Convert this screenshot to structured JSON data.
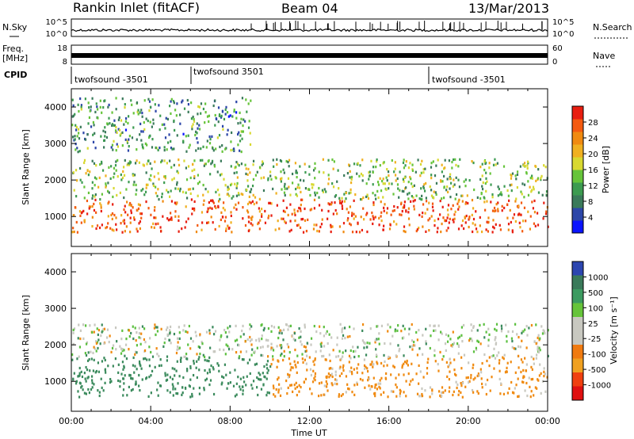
{
  "header": {
    "station": "Rankin Inlet (fitACF)",
    "beam": "Beam 04",
    "date": "13/Mar/2013"
  },
  "strip_labels": {
    "noise_sky": "N.Sky",
    "noise_search": "N.Search",
    "noise_ticks": [
      "10^5",
      "10^0"
    ],
    "freq_label_top": "Freq.",
    "freq_label_unit": "[MHz]",
    "freq_ticks": [
      "18",
      "8"
    ],
    "nave_label": "Nave",
    "nave_ticks": [
      "60",
      "0"
    ],
    "cpid_label": "CPID",
    "cpid_segments": [
      {
        "name": "twofsound -3501",
        "start_hour": 0.0
      },
      {
        "name": "twofsound 3501",
        "start_hour": 6.0
      },
      {
        "name": "twofsound -3501",
        "start_hour": 18.0
      }
    ]
  },
  "x_axis": {
    "label": "Time UT",
    "range_hours": [
      0,
      24
    ],
    "tick_labels": [
      "00:00",
      "04:00",
      "08:00",
      "12:00",
      "16:00",
      "20:00",
      "00:00"
    ]
  },
  "y_axis": {
    "label": "Slant Range [km]",
    "range_km": [
      180,
      4500
    ],
    "tick_labels": [
      "1000",
      "2000",
      "3000",
      "4000"
    ]
  },
  "power_scale": {
    "label": "Power [dB]",
    "range": [
      0,
      32
    ],
    "tick_labels": [
      "4",
      "8",
      "12",
      "16",
      "20",
      "24",
      "28"
    ],
    "colors": [
      "#0a14ff",
      "#2c46a8",
      "#3a7a5a",
      "#3c9b50",
      "#66c43a",
      "#d8d830",
      "#f0b020",
      "#f08a10",
      "#f45a10",
      "#e81e10"
    ]
  },
  "velocity_scale": {
    "label": "Velocity [m s⁻¹]",
    "tick_labels": [
      "1000",
      "500",
      "100",
      "25",
      "-25",
      "-100",
      "-500",
      "-1000"
    ],
    "colors": [
      "#2c46b0",
      "#3a7a5a",
      "#3c9b60",
      "#66c43a",
      "#c8c8c0",
      "#c8c8c0",
      "#f07a10",
      "#f0a020",
      "#f04010",
      "#e01010"
    ]
  },
  "chart_data": {
    "type": "heatmap",
    "title": "Rankin Inlet (fitACF)",
    "xlabel": "Time UT",
    "ylabel": "Slant Range [km]",
    "xlim_hours": [
      0,
      24
    ],
    "ylim_km": [
      180,
      4500
    ],
    "panels": [
      {
        "name": "Power",
        "unit": "dB",
        "scatter_bands": [
          {
            "band": "E/F low",
            "hours": [
              0,
              24
            ],
            "range_km": [
              600,
              1500
            ],
            "typical_power_db": 28
          },
          {
            "band": "mid",
            "hours": [
              0,
              24
            ],
            "range_km": [
              1500,
              2600
            ],
            "typical_power_db": 14
          },
          {
            "band": "upper",
            "hours": [
              0,
              9
            ],
            "range_km": [
              2800,
              4300
            ],
            "typical_power_db": 10
          }
        ]
      },
      {
        "name": "Velocity",
        "unit": "m s⁻¹",
        "scatter_bands": [
          {
            "band": "low",
            "hours": [
              0,
              10
            ],
            "range_km": [
              600,
              1700
            ],
            "typical_velocity": 300
          },
          {
            "band": "low",
            "hours": [
              10,
              24
            ],
            "range_km": [
              600,
              1700
            ],
            "typical_velocity": -200
          },
          {
            "band": "mid",
            "hours": [
              0,
              24
            ],
            "range_km": [
              1700,
              2600
            ],
            "typical_velocity": 0
          }
        ]
      }
    ]
  }
}
